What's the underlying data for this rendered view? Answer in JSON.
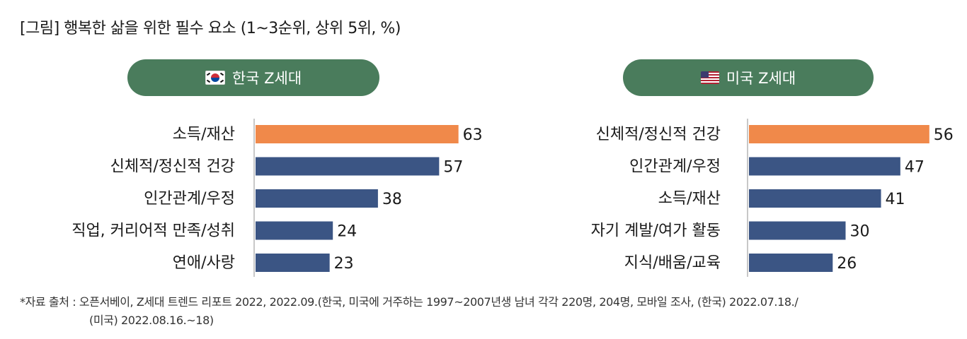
{
  "title": "[그림] 행복한 삶을 위한 필수 요소 (1~3순위, 상위 5위, %)",
  "colors": {
    "highlight": "#f0894a",
    "bar": "#3b5584",
    "pill": "#4a7c5c"
  },
  "chart_data": [
    {
      "type": "bar",
      "orientation": "horizontal",
      "group_label": "한국 Z세대",
      "flag_icon": "korea-flag-icon",
      "categories": [
        "소득/재산",
        "신체적/정신적 건강",
        "인간관계/우정",
        "직업, 커리어적 만족/성취",
        "연애/사랑"
      ],
      "values": [
        63,
        57,
        38,
        24,
        23
      ],
      "xlim": [
        0,
        100
      ]
    },
    {
      "type": "bar",
      "orientation": "horizontal",
      "group_label": "미국 Z세대",
      "flag_icon": "usa-flag-icon",
      "categories": [
        "신체적/정신적 건강",
        "인간관계/우정",
        "소득/재산",
        "자기 계발/여가 활동",
        "지식/배움/교육"
      ],
      "values": [
        56,
        47,
        41,
        30,
        26
      ],
      "xlim": [
        0,
        100
      ]
    }
  ],
  "source_line1": "*자료 출처 : 오픈서베이, Z세대 트렌드 리포트 2022, 2022.09.(한국, 미국에 거주하는 1997~2007년생 남녀 각각 220명, 204명, 모바일 조사, (한국) 2022.07.18./",
  "source_line2": "(미국) 2022.08.16.~18)"
}
